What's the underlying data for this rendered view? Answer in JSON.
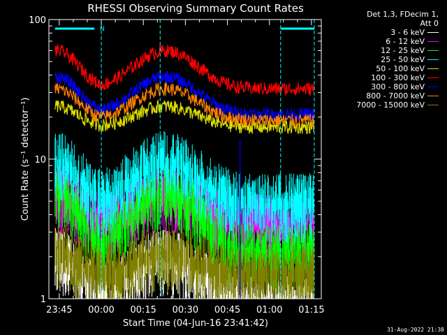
{
  "chart_data": {
    "type": "line",
    "title": "RHESSI Observing Summary Count Rates",
    "xlabel": "Start Time (04-Jun-16 23:41:42)",
    "ylabel": "Count Rate (s⁻¹ detector⁻¹)",
    "ylog": true,
    "ylim": [
      1,
      100
    ],
    "xlim_minutes": [
      -3.7,
      93.5
    ],
    "x_tick_labels": [
      "23:45",
      "00:00",
      "00:15",
      "00:30",
      "00:45",
      "01:00",
      "01:15"
    ],
    "x_tick_minutes": [
      0,
      15,
      30,
      45,
      60,
      75,
      90
    ],
    "y_tick_labels": [
      "1",
      "10",
      "100"
    ],
    "y_tick_values": [
      1,
      10,
      100
    ],
    "legend_header": [
      "Det 1,3, FDecim 1,",
      "Att 0"
    ],
    "legend_placement": "right",
    "grid": false,
    "flag_bars": {
      "label": "N",
      "color": "#00ffff",
      "dashed_lines_minutes": [
        15,
        36,
        79,
        91
      ],
      "bars_minutes": [
        [
          -1.5,
          12.5
        ],
        [
          79,
          91
        ]
      ]
    },
    "series": [
      {
        "name": "3 - 6 keV",
        "color": "#ffffff",
        "legend_color": "#ffffff",
        "kind": "noise_low",
        "base": 1.0,
        "peak": 2.0
      },
      {
        "name": "6 - 12 keV",
        "color": "#ff00ff",
        "legend_color": "#ff00ff",
        "kind": "band",
        "base": 3.5,
        "peak": 5.8
      },
      {
        "name": "12 - 25 keV",
        "color": "#00ff00",
        "legend_color": "#00ff00",
        "kind": "band",
        "base": 2.2,
        "peak": 6.0
      },
      {
        "name": "25 - 50 keV",
        "color": "#00ffff",
        "legend_color": "#00ffff",
        "kind": "band",
        "base": 5.0,
        "peak": 10.0
      },
      {
        "name": "50 - 100 keV",
        "color": "#dddd00",
        "legend_color": "#dddd00",
        "kind": "line",
        "base": 17,
        "peak": 24
      },
      {
        "name": "100 - 300 keV",
        "color": "#ff0000",
        "legend_color": "#ff0000",
        "kind": "line",
        "base": 32,
        "peak": 60
      },
      {
        "name": "300 - 800 keV",
        "color": "#0000ff",
        "legend_color": "#0000ff",
        "kind": "line",
        "base": 21,
        "peak": 39
      },
      {
        "name": "800 - 7000 keV",
        "color": "#ff8000",
        "legend_color": "#ff8000",
        "kind": "line",
        "base": 19,
        "peak": 32
      },
      {
        "name": "7000 - 15000 keV",
        "color": "#808000",
        "legend_color": "#808000",
        "kind": "noise_low",
        "base": 1.5,
        "peak": 2.2
      }
    ],
    "orbit_shape": {
      "peaks_minutes": [
        -1,
        38
      ],
      "peak_widths_minutes": [
        7,
        10
      ],
      "trough_minutes": 15
    },
    "spike": {
      "minute": 64.5,
      "value": 14,
      "color": "#0000ff"
    }
  },
  "timestamp": "31-Aug-2022 21:38"
}
